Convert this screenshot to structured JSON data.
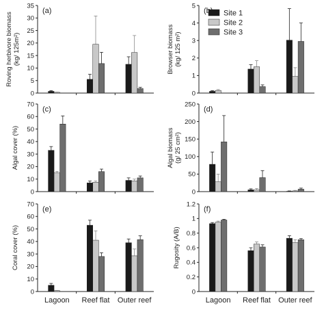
{
  "colors": {
    "Site 1": "#1a1a1a",
    "Site 2": "#c8c8c8",
    "Site 3": "#6e6e6e"
  },
  "legend": {
    "location": "top-right of panel (b)",
    "entries": [
      "Site 1",
      "Site 2",
      "Site 3"
    ]
  },
  "categories": [
    "Lagoon",
    "Reef flat",
    "Outer reef"
  ],
  "chart_data": [
    {
      "type": "bar",
      "panel": "(a)",
      "ylabel": "Roving herbivore biomass\n(kg/ 125m²)",
      "ylim": [
        0,
        35
      ],
      "yticks": [
        0,
        5,
        10,
        15,
        20,
        25,
        30,
        35
      ],
      "categories": [
        "Lagoon",
        "Reef flat",
        "Outer reef"
      ],
      "series": [
        {
          "name": "Site 1",
          "values": [
            0.7,
            5.5,
            11.5
          ],
          "errors": [
            0.3,
            2.0,
            3.0
          ]
        },
        {
          "name": "Site 2",
          "values": [
            0.3,
            19.5,
            16.2
          ],
          "errors": [
            0.1,
            11.3,
            6.8
          ]
        },
        {
          "name": "Site 3",
          "values": [
            0.0,
            11.8,
            1.8
          ],
          "errors": [
            0.0,
            4.5,
            0.5
          ]
        }
      ]
    },
    {
      "type": "bar",
      "panel": "(b)",
      "ylabel": "Browser biomass\n(kg/ 125 m²)",
      "ylim": [
        0,
        5
      ],
      "yticks": [
        0,
        1,
        2,
        3,
        4,
        5
      ],
      "categories": [
        "Lagoon",
        "Reef flat",
        "Outer reef"
      ],
      "series": [
        {
          "name": "Site 1",
          "values": [
            0.1,
            1.37,
            3.02
          ],
          "errors": [
            0.04,
            0.25,
            1.8
          ]
        },
        {
          "name": "Site 2",
          "values": [
            0.15,
            1.5,
            0.95
          ],
          "errors": [
            0.05,
            0.35,
            0.5
          ]
        },
        {
          "name": "Site 3",
          "values": [
            0.0,
            0.37,
            2.95
          ],
          "errors": [
            0.0,
            0.1,
            1.05
          ]
        }
      ]
    },
    {
      "type": "bar",
      "panel": "(c)",
      "ylabel": "Algal cover (%)",
      "ylim": [
        0,
        70
      ],
      "yticks": [
        0,
        10,
        20,
        30,
        40,
        50,
        60,
        70
      ],
      "categories": [
        "Lagoon",
        "Reef flat",
        "Outer reef"
      ],
      "series": [
        {
          "name": "Site 1",
          "values": [
            33.0,
            7.0,
            9.0
          ],
          "errors": [
            3.0,
            1.5,
            2.0
          ]
        },
        {
          "name": "Site 2",
          "values": [
            15.0,
            7.5,
            8.5
          ],
          "errors": [
            1.2,
            1.0,
            1.5
          ]
        },
        {
          "name": "Site 3",
          "values": [
            54.0,
            16.0,
            11.0
          ],
          "errors": [
            6.5,
            2.0,
            1.5
          ]
        }
      ]
    },
    {
      "type": "bar",
      "panel": "(d)",
      "ylabel": "Algal biomass\n(g/ 25 cm²)",
      "ylim": [
        0,
        250
      ],
      "yticks": [
        0,
        50,
        100,
        150,
        200,
        250
      ],
      "categories": [
        "Lagoon",
        "Reef flat",
        "Outer reef"
      ],
      "series": [
        {
          "name": "Site 1",
          "values": [
            78,
            5,
            1
          ],
          "errors": [
            35,
            3,
            1
          ]
        },
        {
          "name": "Site 2",
          "values": [
            28,
            5,
            2
          ],
          "errors": [
            22,
            4,
            1.5
          ]
        },
        {
          "name": "Site 3",
          "values": [
            142,
            40,
            7
          ],
          "errors": [
            75,
            20,
            3
          ]
        }
      ]
    },
    {
      "type": "bar",
      "panel": "(e)",
      "ylabel": "Coral cover (%)",
      "ylim": [
        0,
        70
      ],
      "yticks": [
        0,
        10,
        20,
        30,
        40,
        50,
        60,
        70
      ],
      "categories": [
        "Lagoon",
        "Reef flat",
        "Outer reef"
      ],
      "series": [
        {
          "name": "Site 1",
          "values": [
            5.0,
            53.0,
            39.0
          ],
          "errors": [
            1.5,
            4.0,
            3.0
          ]
        },
        {
          "name": "Site 2",
          "values": [
            0.7,
            41.0,
            28.5
          ],
          "errors": [
            0.2,
            7.5,
            5.5
          ]
        },
        {
          "name": "Site 3",
          "values": [
            0.0,
            28.0,
            41.5
          ],
          "errors": [
            0.0,
            3.0,
            3.0
          ]
        }
      ]
    },
    {
      "type": "bar",
      "panel": "(f)",
      "ylabel": "Rugosity (A/B)",
      "ylim": [
        0,
        1.2
      ],
      "yticks": [
        0,
        0.2,
        0.4,
        0.6,
        0.8,
        1,
        1.2
      ],
      "yticklabels": [
        "0",
        "0.2",
        "0.4",
        "0.6",
        "0.8",
        "1",
        "1.2"
      ],
      "categories": [
        "Lagoon",
        "Reef flat",
        "Outer reef"
      ],
      "series": [
        {
          "name": "Site 1",
          "values": [
            0.93,
            0.56,
            0.73
          ],
          "errors": [
            0.015,
            0.04,
            0.035
          ]
        },
        {
          "name": "Site 2",
          "values": [
            0.95,
            0.65,
            0.67
          ],
          "errors": [
            0.015,
            0.03,
            0.04
          ]
        },
        {
          "name": "Site 3",
          "values": [
            0.98,
            0.61,
            0.71
          ],
          "errors": [
            0.01,
            0.03,
            0.015
          ]
        }
      ]
    }
  ]
}
